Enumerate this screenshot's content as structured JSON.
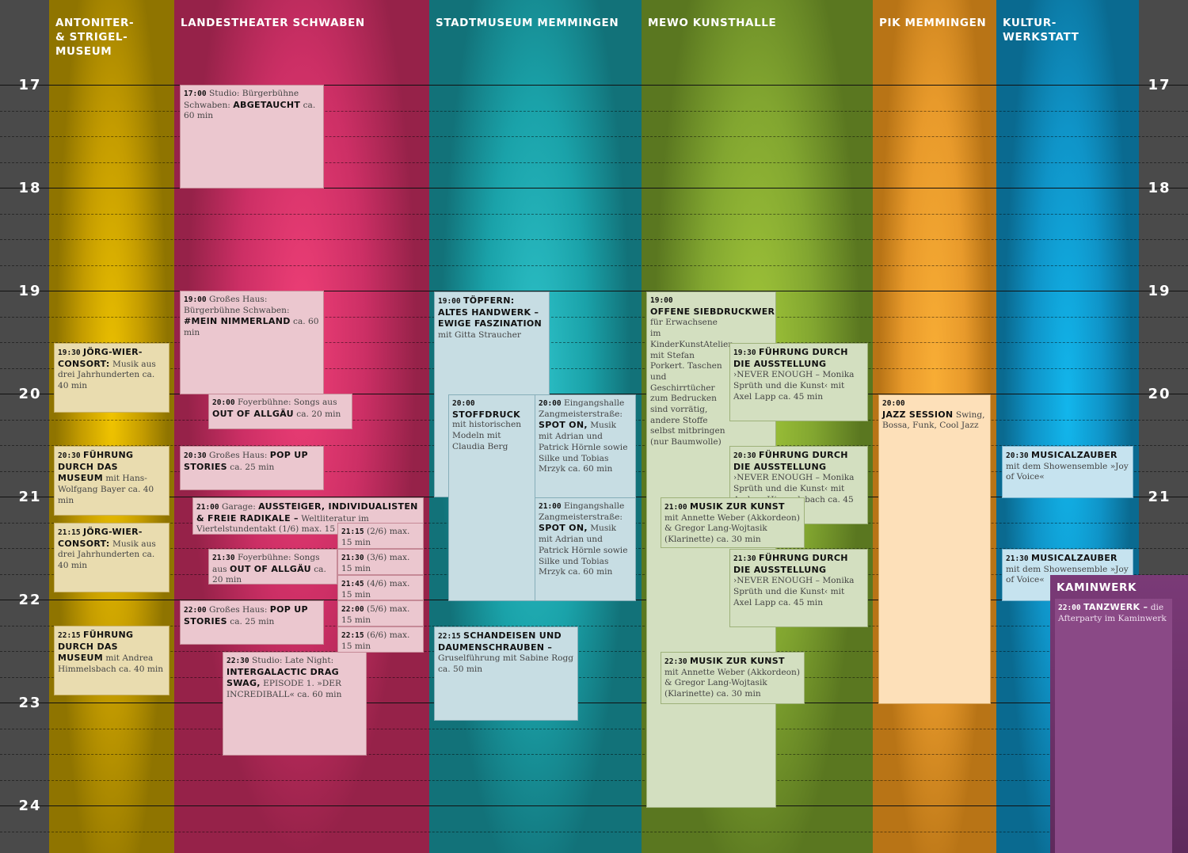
{
  "columns": [
    {
      "id": "antoniter",
      "title_lines": [
        "ANTONITER-",
        "& STRIGEL-",
        "MUSEUM"
      ],
      "color": "#b89400"
    },
    {
      "id": "landestheater",
      "title_lines": [
        "LANDESTHEATER SCHWABEN"
      ],
      "color": "#d1336a"
    },
    {
      "id": "stadtmuseum",
      "title_lines": [
        "STADTMUSEUM MEMMINGEN"
      ],
      "color": "#1a9fa6"
    },
    {
      "id": "mewo",
      "title_lines": [
        "MEWO KUNSTHALLE"
      ],
      "color": "#7fa52e"
    },
    {
      "id": "pik",
      "title_lines": [
        "PIK MEMMINGEN"
      ],
      "color": "#e89a2b"
    },
    {
      "id": "kulturwerkstatt",
      "title_lines": [
        "KULTUR-",
        "WERKSTATT"
      ],
      "color": "#0f94c8"
    }
  ],
  "hours": [
    "17",
    "18",
    "19",
    "20",
    "21",
    "22",
    "23",
    "24"
  ],
  "events": [
    {
      "id": "ev-joerg-1",
      "style": "y",
      "time": "19:30",
      "name": "JÖRG-WIER-CONSORT:",
      "text": "Musik aus drei Jahrhunderten ca. 40 min"
    },
    {
      "id": "ev-fuehrung-museum-1",
      "style": "y",
      "time": "20:30",
      "name": "FÜHRUNG DURCH DAS MUSEUM",
      "text": "mit Hans-Wolfgang Bayer ca. 40 min"
    },
    {
      "id": "ev-joerg-2",
      "style": "y",
      "time": "21:15",
      "name": "JÖRG-WIER-CONSORT:",
      "text": "Musik aus drei Jahrhunderten ca. 40 min"
    },
    {
      "id": "ev-fuehrung-museum-2",
      "style": "y",
      "time": "22:15",
      "name": "FÜHRUNG DURCH DAS MUSEUM",
      "text": "mit Andrea Himmelsbach ca. 40 min"
    },
    {
      "id": "ev-abgetaucht",
      "style": "p",
      "time": "17:00",
      "pre": "Studio: Bürgerbühne Schwaben:",
      "name": "ABGETAUCHT",
      "text": "ca. 60 min"
    },
    {
      "id": "ev-nimmerland",
      "style": "p",
      "time": "19:00",
      "pre": "Großes Haus: Bürgerbühne Schwaben:",
      "name": "#MEIN NIMMERLAND",
      "text": "ca. 60 min"
    },
    {
      "id": "ev-allgaeu-1",
      "style": "p",
      "time": "20:00",
      "pre": "Foyerbühne: Songs aus",
      "name": "OUT OF ALLGÄU",
      "text": "ca. 20 min"
    },
    {
      "id": "ev-popup-1",
      "style": "p",
      "time": "20:30",
      "pre": "Großes Haus:",
      "name": "POP UP STORIES",
      "text": "ca. 25 min"
    },
    {
      "id": "ev-aussteiger",
      "style": "p",
      "time": "21:00",
      "pre": "Garage:",
      "name": "AUSSTEIGER, INDIVIDUALISTEN & FREIE RADIKALE –",
      "text": "Weltliteratur im Viertelstundentakt (1/6) max. 15 min"
    },
    {
      "id": "ev-aussteiger-2",
      "style": "p",
      "time": "21:15",
      "pre": "(2/6)",
      "name": "",
      "text": "max. 15 min"
    },
    {
      "id": "ev-aussteiger-3",
      "style": "p",
      "time": "21:30",
      "pre": "(3/6)",
      "name": "",
      "text": "max. 15 min"
    },
    {
      "id": "ev-aussteiger-4",
      "style": "p",
      "time": "21:45",
      "pre": "(4/6)",
      "name": "",
      "text": "max. 15 min"
    },
    {
      "id": "ev-aussteiger-5",
      "style": "p",
      "time": "22:00",
      "pre": "(5/6)",
      "name": "",
      "text": "max. 15 min"
    },
    {
      "id": "ev-aussteiger-6",
      "style": "p",
      "time": "22:15",
      "pre": "(6/6)",
      "name": "",
      "text": "max. 15 min"
    },
    {
      "id": "ev-allgaeu-2",
      "style": "p",
      "time": "21:30",
      "pre": "Foyerbühne: Songs aus",
      "name": "OUT OF ALLGÄU",
      "text": "ca. 20 min"
    },
    {
      "id": "ev-popup-2",
      "style": "p",
      "time": "22:00",
      "pre": "Großes Haus:",
      "name": "POP UP STORIES",
      "text": "ca. 25 min"
    },
    {
      "id": "ev-dragswag",
      "style": "p",
      "time": "22:30",
      "pre": "Studio: Late Night:",
      "name": "INTERGALACTIC DRAG SWAG,",
      "text": "EPISODE 1. »DER INCREDIBALL« ca. 60 min"
    },
    {
      "id": "ev-toepfern",
      "style": "c",
      "time": "19:00",
      "name": "TÖPFERN: ALTES HANDWERK – EWIGE FASZINATION",
      "text": "mit Gitta Straucher"
    },
    {
      "id": "ev-stoffdruck",
      "style": "c",
      "time": "20:00",
      "name": "STOFFDRUCK",
      "text": "mit historischen Modeln mit Claudia Berg"
    },
    {
      "id": "ev-spoton-1",
      "style": "c",
      "time": "20:00",
      "pre": "Eingangshalle Zangmeisterstraße:",
      "name": "SPOT ON,",
      "text": "Musik mit Adrian und Patrick Hörnle sowie Silke und Tobias Mrzyk ca. 60 min"
    },
    {
      "id": "ev-spoton-2",
      "style": "c",
      "time": "21:00",
      "pre": "Eingangshalle Zangmeisterstraße:",
      "name": "SPOT ON,",
      "text": "Musik mit Adrian und Patrick Hörnle sowie Silke und Tobias Mrzyk ca. 60 min"
    },
    {
      "id": "ev-schandeisen",
      "style": "c",
      "time": "22:15",
      "name": "SCHANDEISEN UND DAUMENSCHRAUBEN –",
      "text": "Gruselführung mit Sabine Rogg ca. 50 min"
    },
    {
      "id": "ev-siebdruck",
      "style": "g",
      "time": "19:00",
      "name": "OFFENE SIEBDRUCKWERKSTATT",
      "text": "für Erwachsene im KinderKunstAtelier mit Stefan Porkert. Taschen und Geschirrtücher zum Bedrucken sind vorrätig, andere Stoffe selbst mitbringen (nur Baumwolle)"
    },
    {
      "id": "ev-ausstellung-1",
      "style": "g",
      "time": "19:30",
      "name": "FÜHRUNG DURCH DIE AUSSTELLUNG",
      "text": "›NEVER ENOUGH – Monika Sprüth und die Kunst‹ mit Axel Lapp ca. 45 min"
    },
    {
      "id": "ev-ausstellung-2",
      "style": "g",
      "time": "20:30",
      "name": "FÜHRUNG DURCH DIE AUSSTELLUNG",
      "text": "›NEVER ENOUGH – Monika Sprüth und die Kunst‹ mit Andrea Himmelsbach ca. 45 min"
    },
    {
      "id": "ev-musik-kunst-1",
      "style": "g",
      "time": "21:00",
      "name": "MUSIK ZUR KUNST",
      "text": "mit Annette Weber (Akkordeon) & Gregor Lang-Wojtasik (Klarinette) ca. 30 min"
    },
    {
      "id": "ev-ausstellung-3",
      "style": "g",
      "time": "21:30",
      "name": "FÜHRUNG DURCH DIE AUSSTELLUNG",
      "text": "›NEVER ENOUGH – Monika Sprüth und die Kunst‹ mit Axel Lapp ca. 45 min"
    },
    {
      "id": "ev-musik-kunst-2",
      "style": "g",
      "time": "22:30",
      "name": "MUSIK ZUR KUNST",
      "text": "mit Annette Weber (Akkordeon) & Gregor Lang-Wojtasik (Klarinette) ca. 30 min"
    },
    {
      "id": "ev-jazz",
      "style": "o",
      "time": "20:00",
      "name": "JAZZ SESSION",
      "text": "Swing, Bossa, Funk, Cool Jazz"
    },
    {
      "id": "ev-musical-1",
      "style": "b",
      "time": "20:30",
      "name": "MUSICALZAUBER",
      "text": "mit dem Showensemble »Joy of Voice«"
    },
    {
      "id": "ev-musical-2",
      "style": "b",
      "time": "21:30",
      "name": "MUSICALZAUBER",
      "text": "mit dem Showensemble »Joy of Voice«"
    }
  ],
  "kaminwerk": {
    "title": "KAMINWERK",
    "time": "22:00",
    "name": "TANZWERK –",
    "text": "die Afterparty im Kaminwerk",
    "color": "#6e2f6b"
  }
}
